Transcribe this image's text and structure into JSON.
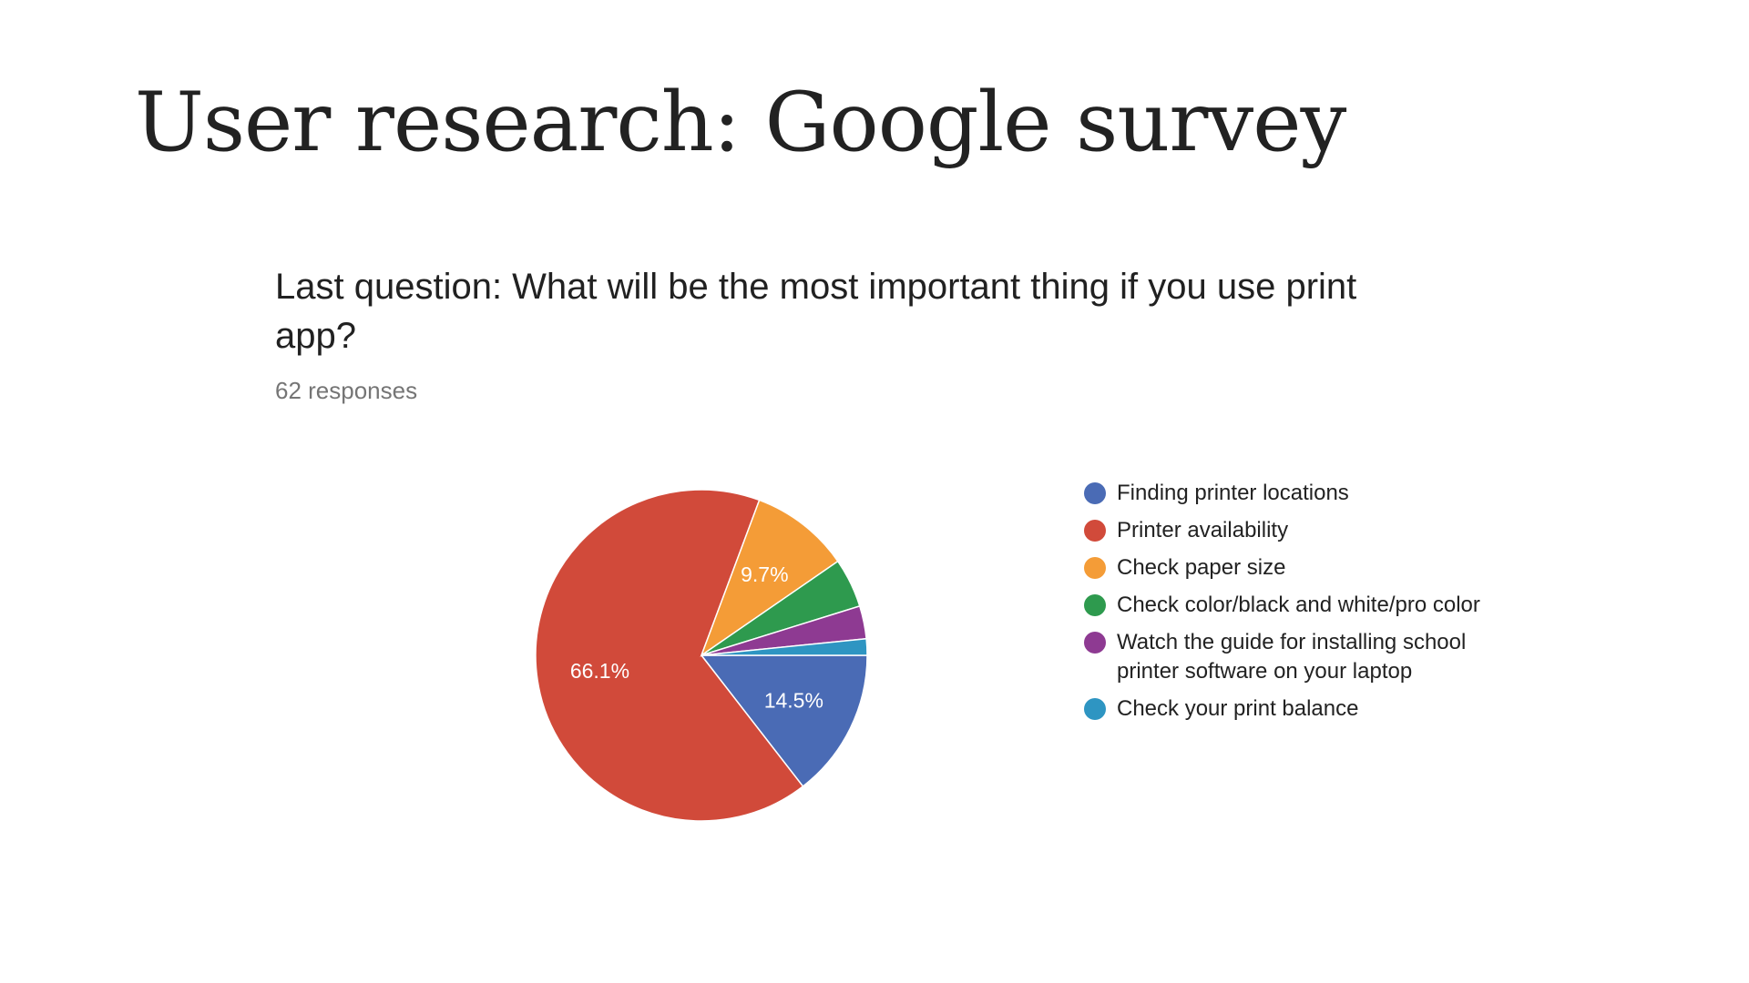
{
  "slide": {
    "title": "User research: Google survey"
  },
  "question": {
    "text": "Last question: What will be the most important thing if you use print app?",
    "responses": "62 responses"
  },
  "chart_data": {
    "type": "pie",
    "title": "Last question: What will be the most important thing if you use print app?",
    "legend_position": "right",
    "slices": [
      {
        "label": "Finding printer locations",
        "value": 14.5,
        "display": "14.5%",
        "color": "#4a6bb5"
      },
      {
        "label": "Printer availability",
        "value": 66.1,
        "display": "66.1%",
        "color": "#d14a3a"
      },
      {
        "label": "Check paper size",
        "value": 9.7,
        "display": "9.7%",
        "color": "#f49c37"
      },
      {
        "label": "Check color/black and white/pro color",
        "value": 4.8,
        "display": "",
        "color": "#2e9a4e"
      },
      {
        "label": "Watch the guide for installing school printer software on your laptop",
        "value": 3.2,
        "display": "",
        "color": "#8e3a92"
      },
      {
        "label": "Check your print balance",
        "value": 1.6,
        "display": "",
        "color": "#2e95c2"
      }
    ]
  }
}
